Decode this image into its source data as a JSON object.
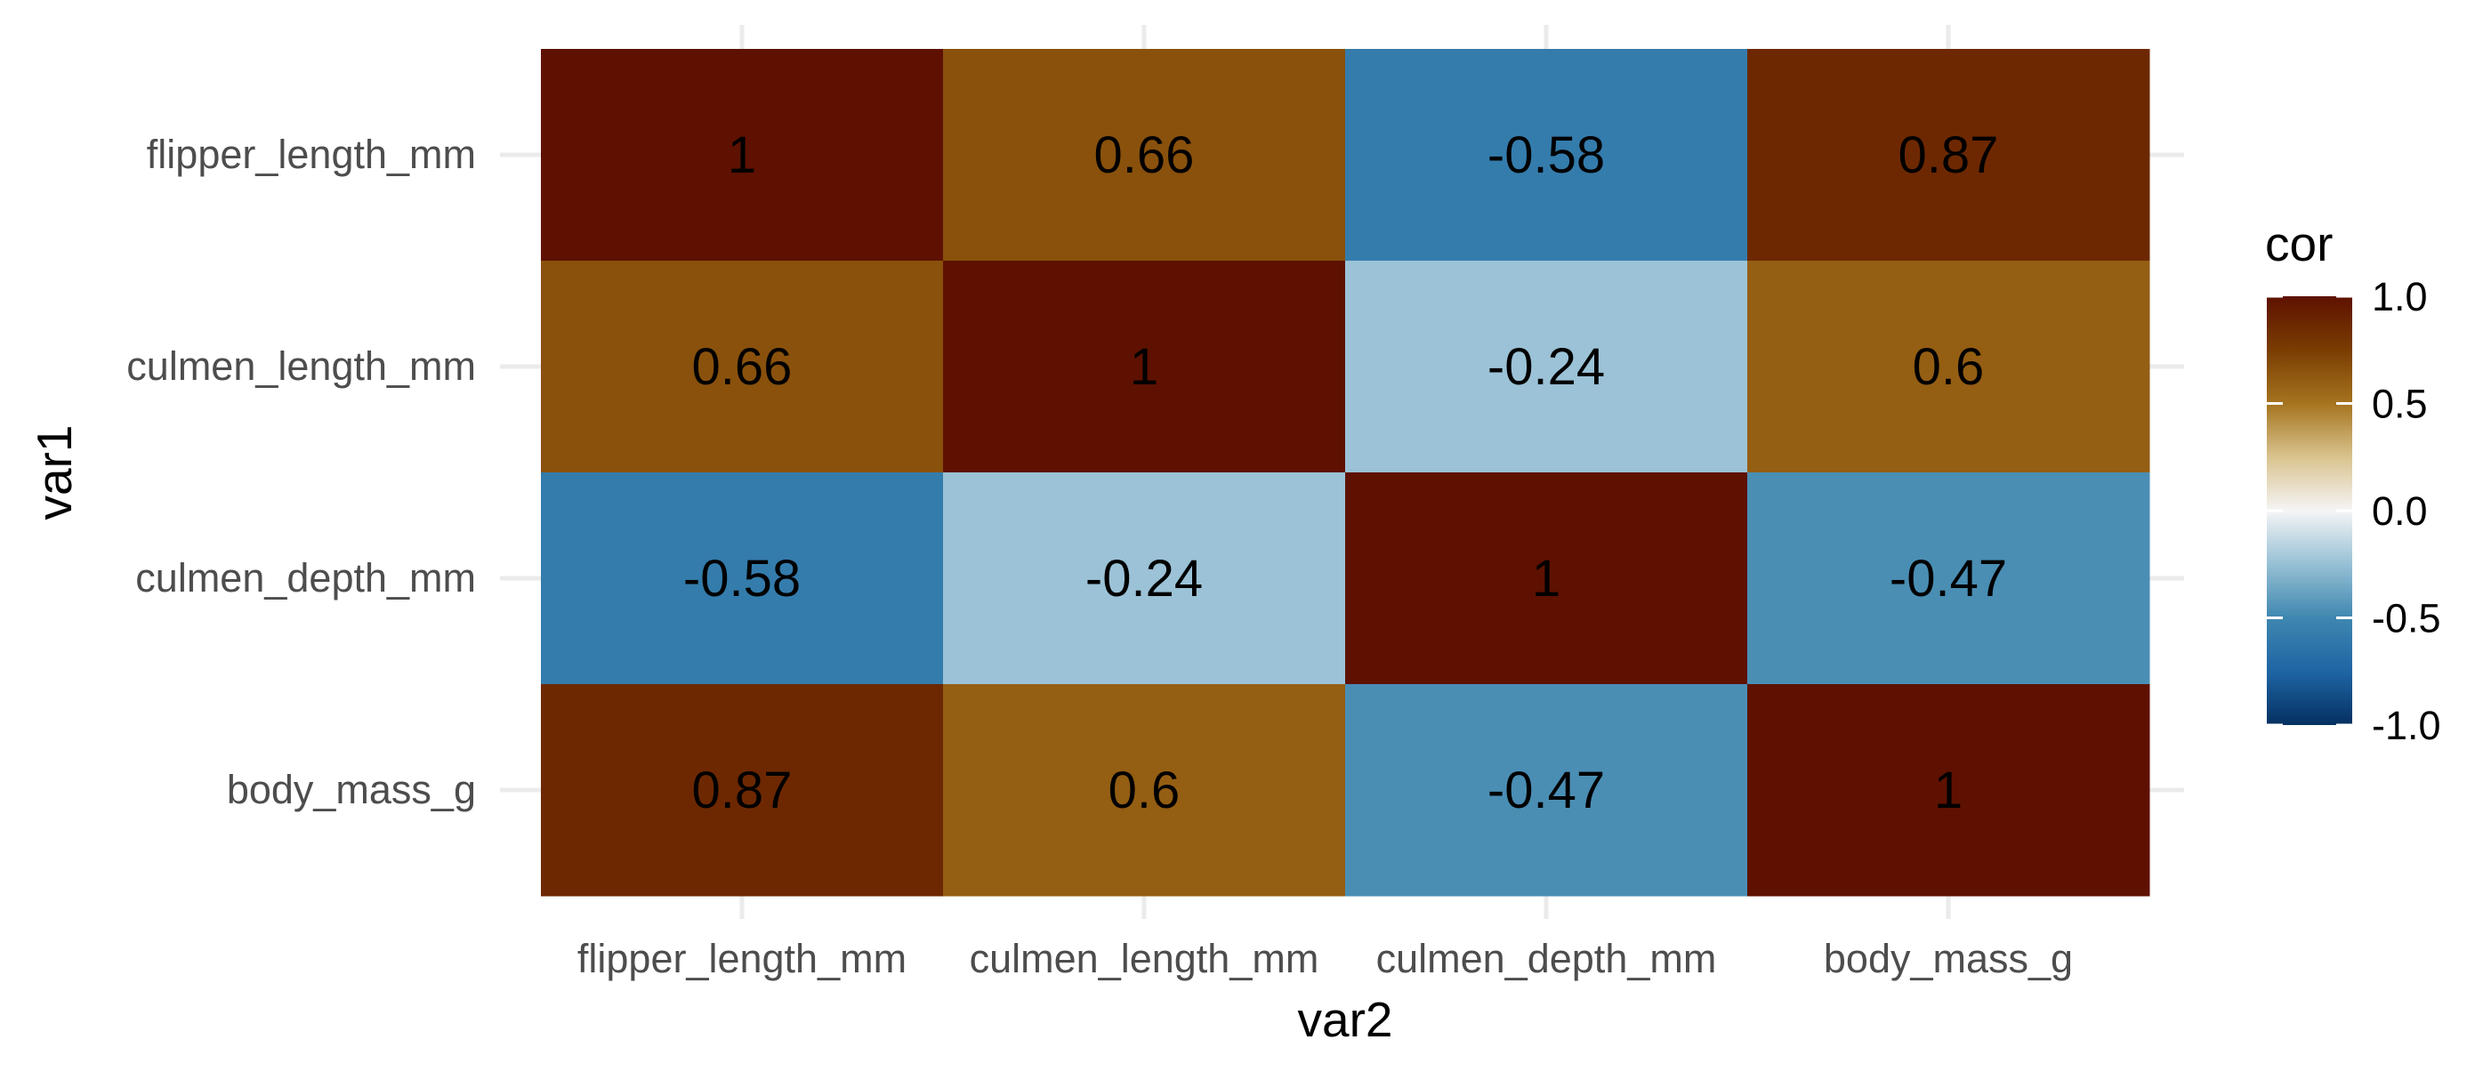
{
  "chart_data": {
    "type": "heatmap",
    "title": "",
    "xlabel": "var2",
    "ylabel": "var1",
    "x_categories": [
      "flipper_length_mm",
      "culmen_length_mm",
      "culmen_depth_mm",
      "body_mass_g"
    ],
    "y_categories": [
      "flipper_length_mm",
      "culmen_length_mm",
      "culmen_depth_mm",
      "body_mass_g"
    ],
    "values": [
      [
        1,
        0.66,
        -0.58,
        0.87
      ],
      [
        0.66,
        1,
        -0.24,
        0.6
      ],
      [
        -0.58,
        -0.24,
        1,
        -0.47
      ],
      [
        0.87,
        0.6,
        -0.47,
        1
      ]
    ],
    "cell_labels": [
      [
        "1",
        "0.66",
        "-0.58",
        "0.87"
      ],
      [
        "0.66",
        "1",
        "-0.24",
        "0.6"
      ],
      [
        "-0.58",
        "-0.24",
        "1",
        "-0.47"
      ],
      [
        "0.87",
        "0.6",
        "-0.47",
        "1"
      ]
    ],
    "legend": {
      "title": "cor",
      "position": "right",
      "range": [
        -1,
        1
      ],
      "ticks": [
        1.0,
        0.5,
        0.0,
        -0.5,
        -1.0
      ],
      "tick_labels": [
        "1.0",
        "0.5",
        "0.0",
        "-0.5",
        "-1.0"
      ]
    },
    "colorscale": [
      {
        "v": -1.0,
        "color": "#053061"
      },
      {
        "v": -0.75,
        "color": "#1e65a4"
      },
      {
        "v": -0.5,
        "color": "#3f87b0"
      },
      {
        "v": -0.25,
        "color": "#97c0d5"
      },
      {
        "v": 0.0,
        "color": "#f5f5f5"
      },
      {
        "v": 0.25,
        "color": "#d9c38e"
      },
      {
        "v": 0.5,
        "color": "#a5741f"
      },
      {
        "v": 0.75,
        "color": "#7a3d02"
      },
      {
        "v": 1.0,
        "color": "#5e1100"
      }
    ],
    "grid": true,
    "theme": "minimal"
  }
}
